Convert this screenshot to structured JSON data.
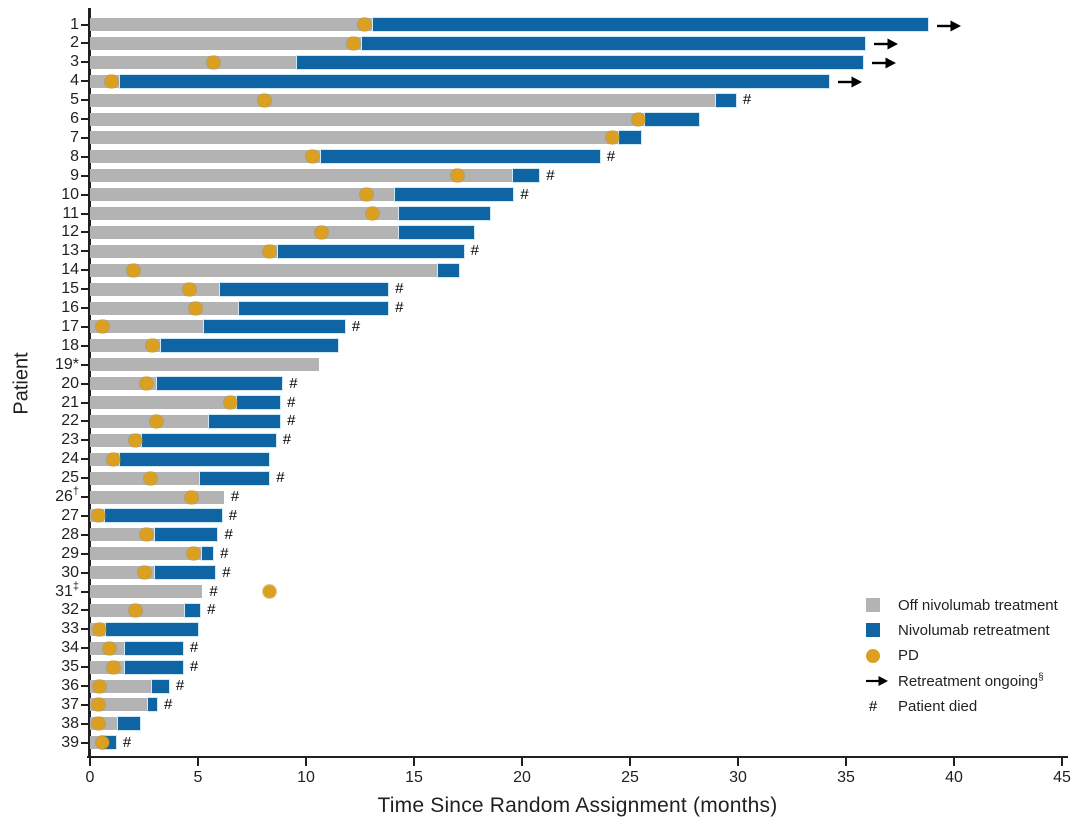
{
  "chart_data": {
    "type": "bar",
    "subtype": "swimmer-plot-horizontal-stacked",
    "title": "",
    "xlabel": "Time Since Random Assignment (months)",
    "ylabel": "Patient",
    "xlim": [
      0,
      45
    ],
    "xticks": [
      0,
      5,
      10,
      15,
      20,
      25,
      30,
      35,
      40,
      45
    ],
    "grid": false,
    "colors": {
      "off_treatment": "#b3b3b4",
      "retreatment": "#0f65a3",
      "pd": "#dba01f",
      "axis": "#231f20",
      "marker": "#000000"
    },
    "legend": {
      "position": "bottom-right",
      "items": [
        {
          "marker": "gray-square",
          "label": "Off nivolumab treatment",
          "sup": ""
        },
        {
          "marker": "blue-square",
          "label": "Nivolumab retreatment",
          "sup": ""
        },
        {
          "marker": "gold-circle",
          "label": "PD",
          "sup": ""
        },
        {
          "marker": "arrow",
          "label": "Retreatment ongoing",
          "sup": "§"
        },
        {
          "marker": "hash",
          "label": "Patient died",
          "sup": ""
        }
      ]
    },
    "series_units": "months",
    "patients": [
      {
        "label": "1",
        "sup": "",
        "off_end": 13.1,
        "retreat_end": 38.8,
        "pd": 12.7,
        "ongoing": true,
        "died": false
      },
      {
        "label": "2",
        "sup": "",
        "off_end": 12.6,
        "retreat_end": 35.9,
        "pd": 12.2,
        "ongoing": true,
        "died": false
      },
      {
        "label": "3",
        "sup": "",
        "off_end": 9.6,
        "retreat_end": 35.8,
        "pd": 5.7,
        "ongoing": true,
        "died": false
      },
      {
        "label": "4",
        "sup": "",
        "off_end": 1.4,
        "retreat_end": 34.2,
        "pd": 1.0,
        "ongoing": true,
        "died": false
      },
      {
        "label": "5",
        "sup": "",
        "off_end": 29.0,
        "retreat_end": 29.9,
        "pd": 8.1,
        "ongoing": false,
        "died": true
      },
      {
        "label": "6",
        "sup": "",
        "off_end": 25.7,
        "retreat_end": 28.2,
        "pd": 25.4,
        "ongoing": false,
        "died": false
      },
      {
        "label": "7",
        "sup": "",
        "off_end": 24.5,
        "retreat_end": 25.5,
        "pd": 24.2,
        "ongoing": false,
        "died": false
      },
      {
        "label": "8",
        "sup": "",
        "off_end": 10.7,
        "retreat_end": 23.6,
        "pd": 10.3,
        "ongoing": false,
        "died": true
      },
      {
        "label": "9",
        "sup": "",
        "off_end": 19.6,
        "retreat_end": 20.8,
        "pd": 17.0,
        "ongoing": false,
        "died": true
      },
      {
        "label": "10",
        "sup": "",
        "off_end": 14.1,
        "retreat_end": 19.6,
        "pd": 12.8,
        "ongoing": false,
        "died": true
      },
      {
        "label": "11",
        "sup": "",
        "off_end": 14.3,
        "retreat_end": 18.5,
        "pd": 13.1,
        "ongoing": false,
        "died": false
      },
      {
        "label": "12",
        "sup": "",
        "off_end": 14.3,
        "retreat_end": 17.8,
        "pd": 10.7,
        "ongoing": false,
        "died": false
      },
      {
        "label": "13",
        "sup": "",
        "off_end": 8.7,
        "retreat_end": 17.3,
        "pd": 8.3,
        "ongoing": false,
        "died": true
      },
      {
        "label": "14",
        "sup": "",
        "off_end": 16.1,
        "retreat_end": 17.1,
        "pd": 2.0,
        "ongoing": false,
        "died": false
      },
      {
        "label": "15",
        "sup": "",
        "off_end": 6.0,
        "retreat_end": 13.8,
        "pd": 4.6,
        "ongoing": false,
        "died": true
      },
      {
        "label": "16",
        "sup": "",
        "off_end": 6.9,
        "retreat_end": 13.8,
        "pd": 4.9,
        "ongoing": false,
        "died": true
      },
      {
        "label": "17",
        "sup": "",
        "off_end": 5.3,
        "retreat_end": 11.8,
        "pd": 0.6,
        "ongoing": false,
        "died": true
      },
      {
        "label": "18",
        "sup": "",
        "off_end": 3.3,
        "retreat_end": 11.5,
        "pd": 2.9,
        "ongoing": false,
        "died": false
      },
      {
        "label": "19*",
        "sup": "",
        "off_end": 10.6,
        "retreat_end": null,
        "pd": null,
        "ongoing": false,
        "died": false
      },
      {
        "label": "20",
        "sup": "",
        "off_end": 3.1,
        "retreat_end": 8.9,
        "pd": 2.6,
        "ongoing": false,
        "died": true
      },
      {
        "label": "21",
        "sup": "",
        "off_end": 6.8,
        "retreat_end": 8.8,
        "pd": 6.5,
        "ongoing": false,
        "died": true
      },
      {
        "label": "22",
        "sup": "",
        "off_end": 5.5,
        "retreat_end": 8.8,
        "pd": 3.1,
        "ongoing": false,
        "died": true
      },
      {
        "label": "23",
        "sup": "",
        "off_end": 2.4,
        "retreat_end": 8.6,
        "pd": 2.1,
        "ongoing": false,
        "died": true
      },
      {
        "label": "24",
        "sup": "",
        "off_end": 1.4,
        "retreat_end": 8.3,
        "pd": 1.1,
        "ongoing": false,
        "died": false
      },
      {
        "label": "25",
        "sup": "",
        "off_end": 5.1,
        "retreat_end": 8.3,
        "pd": 2.8,
        "ongoing": false,
        "died": true
      },
      {
        "label": "26",
        "sup": "†",
        "off_end": 6.2,
        "retreat_end": null,
        "pd": 4.7,
        "ongoing": false,
        "died": true
      },
      {
        "label": "27",
        "sup": "",
        "off_end": 0.7,
        "retreat_end": 6.1,
        "pd": 0.4,
        "ongoing": false,
        "died": true
      },
      {
        "label": "28",
        "sup": "",
        "off_end": 3.0,
        "retreat_end": 5.9,
        "pd": 2.6,
        "ongoing": false,
        "died": true
      },
      {
        "label": "29",
        "sup": "",
        "off_end": 5.2,
        "retreat_end": 5.7,
        "pd": 4.8,
        "ongoing": false,
        "died": true
      },
      {
        "label": "30",
        "sup": "",
        "off_end": 3.0,
        "retreat_end": 5.8,
        "pd": 2.5,
        "ongoing": false,
        "died": true
      },
      {
        "label": "31",
        "sup": "‡",
        "off_end": 5.2,
        "retreat_end": null,
        "pd": 8.3,
        "ongoing": false,
        "died": true
      },
      {
        "label": "32",
        "sup": "",
        "off_end": 4.4,
        "retreat_end": 5.1,
        "pd": 2.1,
        "ongoing": false,
        "died": true
      },
      {
        "label": "33",
        "sup": "",
        "off_end": 0.75,
        "retreat_end": 5.0,
        "pd": 0.45,
        "ongoing": false,
        "died": false
      },
      {
        "label": "34",
        "sup": "",
        "off_end": 1.6,
        "retreat_end": 4.3,
        "pd": 0.9,
        "ongoing": false,
        "died": true
      },
      {
        "label": "35",
        "sup": "",
        "off_end": 1.6,
        "retreat_end": 4.3,
        "pd": 1.1,
        "ongoing": false,
        "died": true
      },
      {
        "label": "36",
        "sup": "",
        "off_end": 2.85,
        "retreat_end": 3.65,
        "pd": 0.45,
        "ongoing": false,
        "died": true
      },
      {
        "label": "37",
        "sup": "",
        "off_end": 2.7,
        "retreat_end": 3.1,
        "pd": 0.4,
        "ongoing": false,
        "died": true
      },
      {
        "label": "38",
        "sup": "",
        "off_end": 1.3,
        "retreat_end": 2.3,
        "pd": 0.4,
        "ongoing": false,
        "died": false
      },
      {
        "label": "39",
        "sup": "",
        "off_end": 0.5,
        "retreat_end": 1.2,
        "pd": 0.6,
        "ongoing": false,
        "died": true
      }
    ]
  }
}
